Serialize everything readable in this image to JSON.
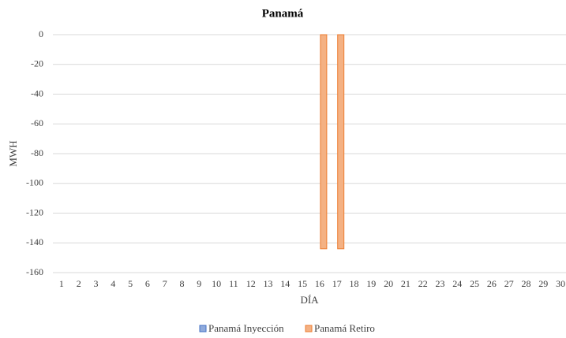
{
  "chart_data": {
    "type": "bar",
    "title": "Panamá",
    "x_label": "DÍA",
    "y_label": "MWH",
    "categories": [
      "1",
      "2",
      "3",
      "4",
      "5",
      "6",
      "7",
      "8",
      "9",
      "10",
      "11",
      "12",
      "13",
      "14",
      "15",
      "16",
      "17",
      "18",
      "19",
      "20",
      "21",
      "22",
      "23",
      "24",
      "25",
      "26",
      "27",
      "28",
      "29",
      "30"
    ],
    "series": [
      {
        "name": "Panamá Inyección",
        "color": "#8faadc",
        "values": [
          0,
          0,
          0,
          0,
          0,
          0,
          0,
          0,
          0,
          0,
          0,
          0,
          0,
          0,
          0,
          0,
          0,
          0,
          0,
          0,
          0,
          0,
          0,
          0,
          0,
          0,
          0,
          0,
          0,
          0
        ]
      },
      {
        "name": "Panamá Retiro",
        "color": "#f4b183",
        "values": [
          0,
          0,
          0,
          0,
          0,
          0,
          0,
          0,
          0,
          0,
          0,
          0,
          0,
          0,
          0,
          -144,
          -144,
          0,
          0,
          0,
          0,
          0,
          0,
          0,
          0,
          0,
          0,
          0,
          0,
          0
        ]
      }
    ],
    "ylim": [
      -160,
      0
    ],
    "yticks": [
      0,
      -20,
      -40,
      -60,
      -80,
      -100,
      -120,
      -140,
      -160
    ],
    "grid": true
  }
}
